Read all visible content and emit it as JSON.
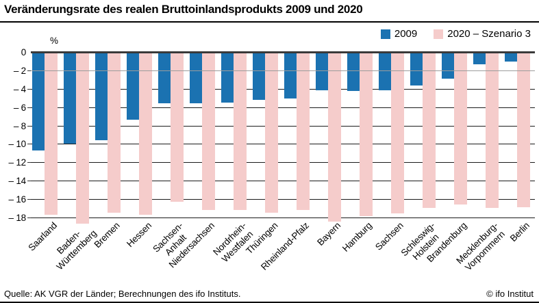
{
  "header": {
    "title": "Veränderungsrate des realen Bruttoinlandsprodukts 2009 und 2020"
  },
  "legend": [
    {
      "label": "2009",
      "color": "#1b72b1"
    },
    {
      "label": "2020 – Szenario 3",
      "color": "#f5cccb"
    }
  ],
  "chart_data": {
    "type": "bar",
    "title": "Veränderungsrate des realen Bruttoinlandsprodukts 2009 und 2020",
    "unit_label": "%",
    "categories": [
      [
        "Saarland"
      ],
      [
        "Baden-",
        "Württemberg"
      ],
      [
        "Bremen"
      ],
      [
        "Hessen"
      ],
      [
        "Sachsen-",
        "Anhalt"
      ],
      [
        "Niedersachsen"
      ],
      [
        "Nordrhein-",
        "Westfalen"
      ],
      [
        "Thüringen"
      ],
      [
        "Rheinland-Pfalz"
      ],
      [
        "Bayern"
      ],
      [
        "Hamburg"
      ],
      [
        "Sachsen"
      ],
      [
        "Schleswig-",
        "Holstein"
      ],
      [
        "Brandenburg"
      ],
      [
        "Mecklenburg-",
        "Vorpommern"
      ],
      [
        "Berlin"
      ]
    ],
    "series": [
      {
        "name": "2009",
        "color": "#1b72b1",
        "values": [
          -10.6,
          -9.9,
          -9.5,
          -7.3,
          -5.5,
          -5.5,
          -5.4,
          -5.1,
          -5.0,
          -4.1,
          -4.2,
          -4.1,
          -3.6,
          -2.8,
          -1.3,
          -1.0
        ]
      },
      {
        "name": "2020 – Szenario 3",
        "color": "#f5cccb",
        "values": [
          -17.6,
          -18.6,
          -17.4,
          -17.6,
          -16.2,
          -17.1,
          -17.1,
          -17.4,
          -17.1,
          -18.4,
          -17.8,
          -17.5,
          -16.9,
          -16.5,
          -16.9,
          -16.8
        ]
      }
    ],
    "ylim": [
      0,
      -18
    ],
    "ytick_step": 2,
    "yticks": [
      "0",
      "– 2",
      "– 4",
      "– 6",
      "– 8",
      "– 10",
      "– 12",
      "– 14",
      "– 16",
      "– 18"
    ],
    "grid": "horizontal",
    "highlight_gridline": -2,
    "legend_position": "top-right"
  },
  "footer": {
    "source": "Quelle: AK VGR der Länder; Berechnungen des ifo Instituts.",
    "copyright": "© ifo Institut"
  }
}
